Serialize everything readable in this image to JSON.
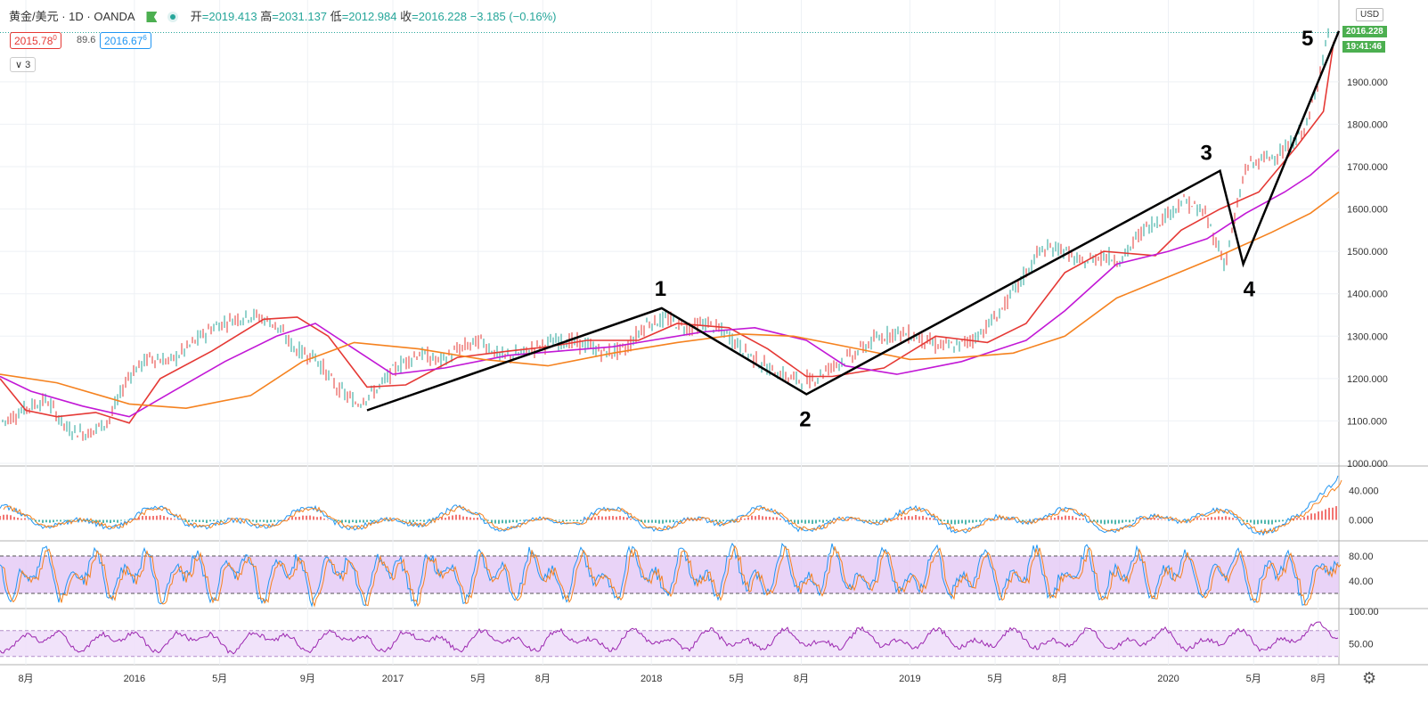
{
  "header": {
    "symbol": "黄金/美元 · 1D · OANDA",
    "open_label": "开",
    "open": "=2019.413",
    "high_label": "高",
    "high": "=2031.137",
    "low_label": "低",
    "low": "=2012.984",
    "close_label": "收",
    "close": "=2016.228",
    "change": "−3.185 (−0.16%)",
    "bid": "2015.78",
    "bid_sup": "0",
    "spread": "89.6",
    "ask": "2016.67",
    "ask_sup": "6",
    "collapse_label": "3"
  },
  "price_axis": {
    "currency": "USD",
    "last_price": "2016.228",
    "countdown": "19:41:46"
  },
  "colors": {
    "up": "#26a69a",
    "down": "#e53935",
    "ma_short": "#e53935",
    "ma_mid": "#c218d6",
    "ma_long": "#f5821f",
    "macd_fast": "#2196f3",
    "macd_slow": "#f5821f",
    "stoch_k": "#2196f3",
    "stoch_d": "#f5821f",
    "rsi": "#9c27b0",
    "wave": "#000000"
  },
  "chart_data": [
    {
      "type": "line",
      "title": "",
      "pane": "price",
      "ylim": [
        1000,
        2030
      ],
      "yticks": [
        "1000.000",
        "1100.000",
        "1200.000",
        "1300.000",
        "1400.000",
        "1500.000",
        "1600.000",
        "1700.000",
        "1800.000",
        "1900.000"
      ],
      "x_range": [
        2015.48,
        2020.66
      ],
      "x_tick_values": [
        2015.58,
        2016.0,
        2016.33,
        2016.67,
        2017.0,
        2017.33,
        2017.58,
        2018.0,
        2018.33,
        2018.58,
        2019.0,
        2019.33,
        2019.58,
        2020.0,
        2020.33,
        2020.58
      ],
      "x_tick_labels": [
        "8月",
        "2016",
        "5月",
        "9月",
        "2017",
        "5月",
        "8月",
        "2018",
        "5月",
        "8月",
        "2019",
        "5月",
        "8月",
        "2020",
        "5月",
        "8月"
      ],
      "series": [
        {
          "x": [
            2015.48,
            2015.58,
            2015.7,
            2015.85,
            2015.98,
            2016.1,
            2016.3,
            2016.5,
            2016.63,
            2016.75,
            2016.9,
            2017.05,
            2017.25,
            2017.45,
            2017.6,
            2017.75,
            2017.95,
            2018.1,
            2018.3,
            2018.45,
            2018.6,
            2018.7,
            2018.9,
            2019.1,
            2019.3,
            2019.45,
            2019.6,
            2019.75,
            2019.95,
            2020.05,
            2020.2,
            2020.35,
            2020.5,
            2020.6,
            2020.64
          ],
          "y": [
            1200,
            1125,
            1110,
            1120,
            1095,
            1200,
            1265,
            1340,
            1345,
            1300,
            1180,
            1185,
            1250,
            1265,
            1275,
            1290,
            1290,
            1330,
            1320,
            1270,
            1205,
            1205,
            1225,
            1300,
            1285,
            1330,
            1450,
            1500,
            1490,
            1550,
            1600,
            1640,
            1750,
            1830,
            1995
          ]
        },
        {
          "x": [
            2015.48,
            2015.6,
            2015.8,
            2015.98,
            2016.15,
            2016.35,
            2016.55,
            2016.7,
            2016.85,
            2017.0,
            2017.2,
            2017.45,
            2017.65,
            2017.85,
            2018.0,
            2018.2,
            2018.4,
            2018.6,
            2018.75,
            2018.95,
            2019.2,
            2019.45,
            2019.6,
            2019.8,
            2020.0,
            2020.15,
            2020.3,
            2020.45,
            2020.55,
            2020.66
          ],
          "y": [
            1205,
            1170,
            1135,
            1110,
            1170,
            1240,
            1300,
            1330,
            1270,
            1210,
            1225,
            1255,
            1265,
            1275,
            1290,
            1310,
            1320,
            1290,
            1230,
            1210,
            1240,
            1290,
            1360,
            1470,
            1500,
            1530,
            1590,
            1640,
            1680,
            1740
          ]
        },
        {
          "x": [
            2015.48,
            2015.7,
            2015.98,
            2016.2,
            2016.45,
            2016.65,
            2016.85,
            2017.1,
            2017.35,
            2017.6,
            2017.85,
            2018.1,
            2018.35,
            2018.55,
            2018.8,
            2019.0,
            2019.2,
            2019.4,
            2019.6,
            2019.8,
            2020.0,
            2020.2,
            2020.4,
            2020.55,
            2020.66
          ],
          "y": [
            1210,
            1190,
            1140,
            1130,
            1160,
            1240,
            1285,
            1270,
            1245,
            1230,
            1260,
            1285,
            1305,
            1300,
            1270,
            1245,
            1250,
            1260,
            1300,
            1390,
            1440,
            1490,
            1545,
            1590,
            1640
          ]
        }
      ],
      "candles": {
        "x": [
          2015.5,
          2015.58,
          2015.66,
          2015.74,
          2015.82,
          2015.9,
          2015.98,
          2016.06,
          2016.14,
          2016.22,
          2016.3,
          2016.38,
          2016.46,
          2016.54,
          2016.62,
          2016.7,
          2016.78,
          2016.86,
          2016.94,
          2017.02,
          2017.1,
          2017.18,
          2017.26,
          2017.34,
          2017.42,
          2017.5,
          2017.58,
          2017.66,
          2017.74,
          2017.82,
          2017.9,
          2017.98,
          2018.06,
          2018.14,
          2018.22,
          2018.3,
          2018.38,
          2018.46,
          2018.54,
          2018.62,
          2018.7,
          2018.78,
          2018.86,
          2018.94,
          2019.02,
          2019.1,
          2019.18,
          2019.26,
          2019.34,
          2019.42,
          2019.5,
          2019.58,
          2019.66,
          2019.74,
          2019.82,
          2019.9,
          2019.98,
          2020.06,
          2020.14,
          2020.22,
          2020.3,
          2020.38,
          2020.46,
          2020.54,
          2020.62
        ],
        "open": [
          1190,
          1100,
          1130,
          1150,
          1080,
          1070,
          1100,
          1210,
          1250,
          1240,
          1280,
          1320,
          1340,
          1350,
          1330,
          1270,
          1250,
          1180,
          1140,
          1175,
          1230,
          1260,
          1240,
          1270,
          1290,
          1250,
          1260,
          1280,
          1290,
          1280,
          1260,
          1270,
          1330,
          1340,
          1320,
          1330,
          1300,
          1255,
          1220,
          1200,
          1195,
          1230,
          1255,
          1290,
          1310,
          1300,
          1280,
          1275,
          1300,
          1350,
          1420,
          1500,
          1510,
          1470,
          1490,
          1480,
          1550,
          1580,
          1620,
          1590,
          1470,
          1700,
          1720,
          1740,
          1800
        ],
        "close": [
          1100,
          1130,
          1150,
          1080,
          1070,
          1100,
          1210,
          1250,
          1240,
          1280,
          1320,
          1340,
          1350,
          1330,
          1270,
          1250,
          1180,
          1140,
          1175,
          1230,
          1260,
          1240,
          1270,
          1290,
          1250,
          1260,
          1280,
          1290,
          1280,
          1260,
          1270,
          1330,
          1340,
          1320,
          1330,
          1300,
          1255,
          1220,
          1200,
          1195,
          1230,
          1255,
          1290,
          1310,
          1300,
          1280,
          1275,
          1300,
          1350,
          1420,
          1500,
          1510,
          1470,
          1490,
          1480,
          1550,
          1580,
          1620,
          1590,
          1470,
          1700,
          1720,
          1740,
          1800,
          2016
        ]
      },
      "wave_labels": [
        "1",
        "2",
        "3",
        "4",
        "5"
      ],
      "wave_points": [
        {
          "x": 2016.9,
          "y": 1125
        },
        {
          "x": 2018.04,
          "y": 1366
        },
        {
          "x": 2018.6,
          "y": 1163
        },
        {
          "x": 2020.2,
          "y": 1690
        },
        {
          "x": 2020.29,
          "y": 1470
        },
        {
          "x": 2020.66,
          "y": 2020
        }
      ],
      "last_price": 2016.228
    },
    {
      "type": "line",
      "pane": "macd",
      "title": "",
      "ylim": [
        -25,
        70
      ],
      "yticks": [
        "0.000",
        "40.000"
      ]
    },
    {
      "type": "line",
      "pane": "stochastic",
      "title": "",
      "ylim": [
        0,
        100
      ],
      "yticks": [
        "40.00",
        "80.00"
      ],
      "band": [
        20,
        80
      ]
    },
    {
      "type": "line",
      "pane": "rsi",
      "title": "",
      "ylim": [
        20,
        100
      ],
      "yticks": [
        "100.00",
        "50.00"
      ],
      "band": [
        30,
        70
      ]
    }
  ]
}
